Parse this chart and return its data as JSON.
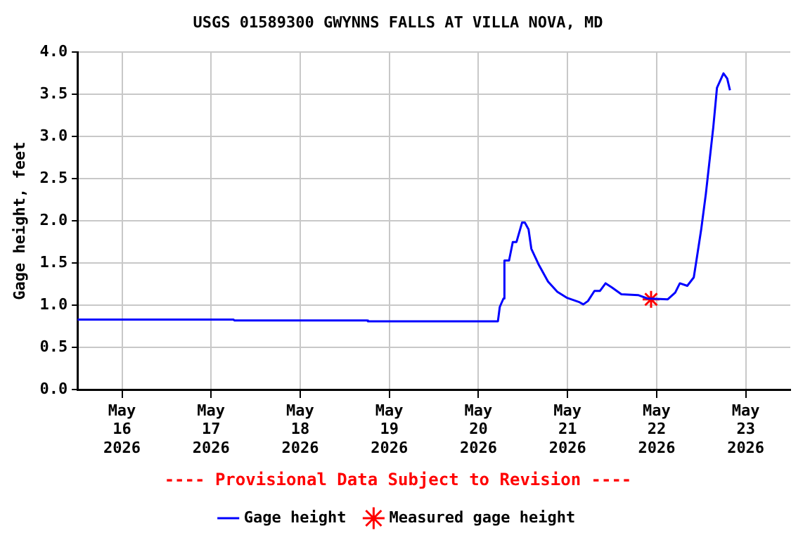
{
  "chart_data": {
    "type": "line",
    "title": "USGS 01589300 GWYNNS FALLS AT VILLA NOVA, MD",
    "ylabel": "Gage height, feet",
    "annotations": [
      "---- Provisional Data Subject to Revision ----"
    ],
    "xlim": [
      "2026-05-15T12:00",
      "2026-05-23T12:00"
    ],
    "xticks": [
      {
        "value": "2026-05-16",
        "label": "May 16 2026"
      },
      {
        "value": "2026-05-17",
        "label": "May 17 2026"
      },
      {
        "value": "2026-05-18",
        "label": "May 18 2026"
      },
      {
        "value": "2026-05-19",
        "label": "May 19 2026"
      },
      {
        "value": "2026-05-20",
        "label": "May 20 2026"
      },
      {
        "value": "2026-05-21",
        "label": "May 21 2026"
      },
      {
        "value": "2026-05-22",
        "label": "May 22 2026"
      },
      {
        "value": "2026-05-23",
        "label": "May 23 2026"
      }
    ],
    "ylim": [
      0,
      4
    ],
    "yticks": [
      {
        "value": 0,
        "label": "0.0"
      },
      0.5,
      {
        "value": 1,
        "label": "1.0"
      },
      1.5,
      {
        "value": 2,
        "label": "2.0"
      },
      2.5,
      {
        "value": 3,
        "label": "3.0"
      },
      3.5,
      {
        "value": 4,
        "label": "4.0"
      }
    ],
    "grid": true,
    "legend": "bottom",
    "series": [
      {
        "name": "Gage height",
        "color": "#0000ff",
        "marker": "none",
        "x": [
          "2026-05-15T12:00",
          "2026-05-17T06:00",
          "2026-05-17T06:15",
          "2026-05-18T18:00",
          "2026-05-18T18:15",
          "2026-05-20T05:15",
          "2026-05-20T05:45",
          "2026-05-20T06:45",
          "2026-05-20T07:00",
          "2026-05-20T08:15",
          "2026-05-20T09:15",
          "2026-05-20T10:15",
          "2026-05-20T11:45",
          "2026-05-20T12:30",
          "2026-05-20T13:30",
          "2026-05-20T14:15",
          "2026-05-20T16:15",
          "2026-05-20T18:45",
          "2026-05-20T21:15",
          "2026-05-20T23:45",
          "2026-05-21T03:00",
          "2026-05-21T04:15",
          "2026-05-21T05:30",
          "2026-05-21T07:15",
          "2026-05-21T08:45",
          "2026-05-21T10:15",
          "2026-05-21T12:00",
          "2026-05-21T14:30",
          "2026-05-21T19:00",
          "2026-05-21T21:30",
          "2026-05-22T03:00",
          "2026-05-22T05:00",
          "2026-05-22T06:15",
          "2026-05-22T08:15",
          "2026-05-22T10:00",
          "2026-05-22T10:45",
          "2026-05-22T12:00",
          "2026-05-22T13:15",
          "2026-05-22T15:15",
          "2026-05-22T16:15",
          "2026-05-22T18:00",
          "2026-05-22T19:00",
          "2026-05-22T19:45"
        ],
        "values": [
          0.83,
          0.83,
          0.82,
          0.82,
          0.81,
          0.81,
          0.98,
          1.08,
          1.53,
          1.53,
          1.75,
          1.75,
          1.98,
          1.98,
          1.9,
          1.67,
          1.48,
          1.28,
          1.16,
          1.09,
          1.04,
          1.01,
          1.05,
          1.17,
          1.17,
          1.26,
          1.21,
          1.13,
          1.12,
          1.08,
          1.07,
          1.15,
          1.26,
          1.23,
          1.33,
          1.54,
          1.9,
          2.32,
          3.11,
          3.58,
          3.75,
          3.69,
          3.55
        ]
      },
      {
        "name": "Measured gage height",
        "type": "scatter",
        "color": "#ff0000",
        "marker": "cross",
        "x": [
          "2026-05-21T22:30"
        ],
        "values": [
          1.07
        ]
      }
    ]
  }
}
